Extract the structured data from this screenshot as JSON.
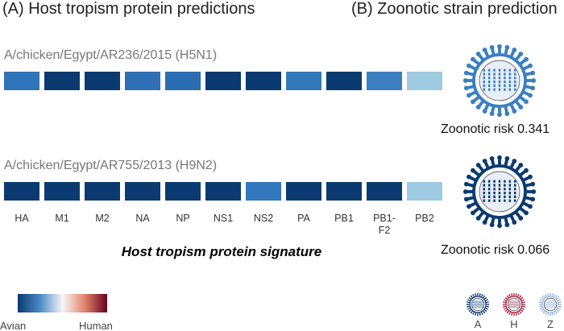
{
  "panels": {
    "a_title": "(A) Host tropism protein predictions",
    "b_title": "(B) Zoonotic strain prediction"
  },
  "proteins": [
    "HA",
    "M1",
    "M2",
    "NA",
    "NP",
    "NS1",
    "NS2",
    "PA",
    "PB1",
    "PB1-\nF2",
    "PB2"
  ],
  "strains": [
    {
      "name": "A/chicken/Egypt/AR236/2015 (H5N1)",
      "risk": "Zoonotic risk 0.341",
      "virus_color": "#3a7fc1",
      "colors": [
        "#2f74b9",
        "#0b3a70",
        "#0b3a70",
        "#2e6fb5",
        "#2a6db3",
        "#0b3a70",
        "#0b3a70",
        "#3279bb",
        "#0b3a70",
        "#3c7fc0",
        "#9ecae1"
      ]
    },
    {
      "name": "A/chicken/Egypt/AR755/2013 (H9N2)",
      "risk": "Zoonotic risk 0.066",
      "virus_color": "#0b3a70",
      "colors": [
        "#0b3a70",
        "#0b3a70",
        "#0b3a70",
        "#0b3a70",
        "#0b3a70",
        "#0b3a70",
        "#3378bd",
        "#0b3a70",
        "#0b3a70",
        "#0b3a70",
        "#9ecae1"
      ]
    }
  ],
  "signature": "Host tropism protein signature",
  "legend": {
    "low": "Avian",
    "high": "Human"
  },
  "icons": [
    {
      "label": "A",
      "color": "#0b3a70"
    },
    {
      "label": "H",
      "color": "#a8203a"
    },
    {
      "label": "Z",
      "color": "#9ab8dc"
    }
  ]
}
